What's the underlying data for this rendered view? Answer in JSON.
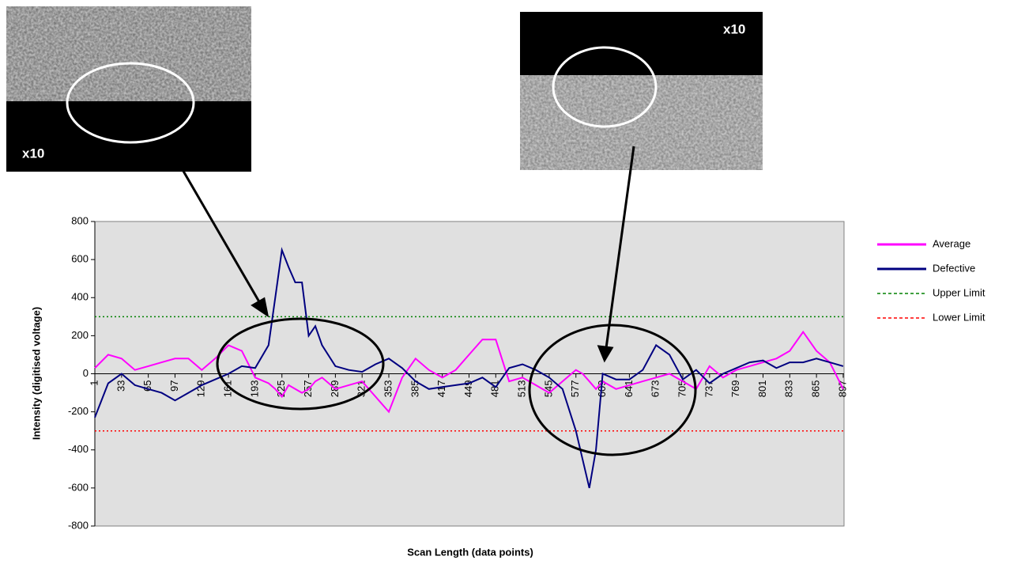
{
  "chart_data": {
    "type": "line",
    "ylabel": "Intensity (digitised voltage)",
    "xlabel": "Scan Length (data points)",
    "x": [
      1,
      17,
      33,
      49,
      65,
      81,
      97,
      113,
      129,
      145,
      161,
      177,
      193,
      209,
      217,
      225,
      233,
      241,
      249,
      257,
      265,
      273,
      289,
      305,
      321,
      337,
      353,
      369,
      385,
      401,
      417,
      433,
      449,
      465,
      481,
      497,
      513,
      529,
      545,
      561,
      577,
      585,
      593,
      601,
      609,
      625,
      641,
      657,
      673,
      689,
      705,
      721,
      737,
      753,
      769,
      785,
      801,
      817,
      833,
      849,
      865,
      881,
      897
    ],
    "series": [
      {
        "name": "Average",
        "color": "#ff00ff",
        "values": [
          30,
          100,
          80,
          20,
          40,
          60,
          80,
          80,
          20,
          80,
          150,
          120,
          -20,
          -50,
          -80,
          -120,
          -60,
          -80,
          -100,
          -80,
          -40,
          -20,
          -80,
          -60,
          -40,
          -120,
          -200,
          -20,
          80,
          20,
          -20,
          20,
          100,
          180,
          180,
          -40,
          -20,
          -60,
          -100,
          -40,
          20,
          0,
          -40,
          -80,
          -40,
          -80,
          -60,
          -40,
          -20,
          0,
          -40,
          -80,
          40,
          -20,
          20,
          40,
          60,
          80,
          120,
          220,
          120,
          60,
          -80
        ]
      },
      {
        "name": "Defective",
        "color": "#000080",
        "values": [
          -230,
          -50,
          0,
          -60,
          -80,
          -100,
          -140,
          -100,
          -60,
          -30,
          0,
          40,
          30,
          150,
          400,
          650,
          560,
          480,
          480,
          200,
          250,
          150,
          40,
          20,
          10,
          50,
          80,
          30,
          -40,
          -80,
          -70,
          -60,
          -50,
          -20,
          -70,
          30,
          50,
          20,
          -20,
          -80,
          -300,
          -450,
          -600,
          -400,
          0,
          -30,
          -30,
          20,
          150,
          100,
          -30,
          20,
          -50,
          0,
          30,
          60,
          70,
          30,
          60,
          60,
          80,
          60,
          40
        ]
      }
    ],
    "reference_lines": [
      {
        "name": "Upper Limit",
        "value": 300,
        "color": "#008000"
      },
      {
        "name": "Lower Limit",
        "value": -300,
        "color": "#ff0000"
      }
    ],
    "xlim": [
      1,
      898
    ],
    "xticks": [
      1,
      33,
      65,
      97,
      129,
      161,
      193,
      225,
      257,
      289,
      321,
      353,
      385,
      417,
      449,
      481,
      513,
      545,
      577,
      609,
      641,
      673,
      705,
      737,
      769,
      801,
      833,
      865,
      897
    ],
    "ylim": [
      -800,
      800
    ],
    "yticks": [
      -800,
      -600,
      -400,
      -200,
      0,
      200,
      400,
      600,
      800
    ],
    "legend": "right"
  },
  "images": [
    {
      "label": "x10"
    },
    {
      "label": "x10"
    }
  ]
}
